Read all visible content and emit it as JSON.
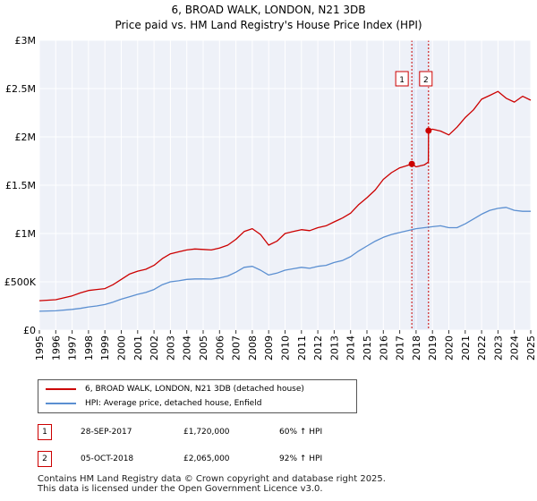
{
  "chart_data": {
    "type": "line",
    "title": "6, BROAD WALK, LONDON, N21 3DB",
    "subtitle": "Price paid vs. HM Land Registry's House Price Index (HPI)",
    "xlabel": "",
    "ylabel": "",
    "xlim": [
      1995,
      2025
    ],
    "ylim": [
      0,
      3000000
    ],
    "grid": true,
    "y_ticks": [
      {
        "value": 0,
        "label": "£0"
      },
      {
        "value": 500000,
        "label": "£500K"
      },
      {
        "value": 1000000,
        "label": "£1M"
      },
      {
        "value": 1500000,
        "label": "£1.5M"
      },
      {
        "value": 2000000,
        "label": "£2M"
      },
      {
        "value": 2500000,
        "label": "£2.5M"
      },
      {
        "value": 3000000,
        "label": "£3M"
      }
    ],
    "x_ticks": [
      "1995",
      "1996",
      "1997",
      "1998",
      "1999",
      "2000",
      "2001",
      "2002",
      "2003",
      "2004",
      "2005",
      "2006",
      "2007",
      "2008",
      "2009",
      "2010",
      "2011",
      "2012",
      "2013",
      "2014",
      "2015",
      "2016",
      "2017",
      "2018",
      "2019",
      "2020",
      "2021",
      "2022",
      "2023",
      "2024",
      "2025"
    ],
    "series": [
      {
        "name": "6, BROAD WALK, LONDON, N21 3DB (detached house)",
        "color": "#cc0000",
        "x": [
          1995.0,
          1996.0,
          1997.0,
          1997.5,
          1998.0,
          1998.5,
          1999.0,
          1999.5,
          2000.0,
          2000.5,
          2001.0,
          2001.5,
          2002.0,
          2002.5,
          2003.0,
          2003.5,
          2004.0,
          2004.5,
          2005.0,
          2005.5,
          2006.0,
          2006.5,
          2007.0,
          2007.5,
          2008.0,
          2008.5,
          2009.0,
          2009.5,
          2010.0,
          2010.5,
          2011.0,
          2011.5,
          2012.0,
          2012.5,
          2013.0,
          2013.5,
          2014.0,
          2014.5,
          2015.0,
          2015.5,
          2016.0,
          2016.5,
          2017.0,
          2017.4,
          2017.74,
          2018.0,
          2018.5,
          2018.75,
          2018.76,
          2019.0,
          2019.5,
          2020.0,
          2020.5,
          2021.0,
          2021.5,
          2022.0,
          2022.5,
          2023.0,
          2023.5,
          2024.0,
          2024.5,
          2025.0
        ],
        "values": [
          305000,
          315000,
          355000,
          385000,
          410000,
          420000,
          430000,
          470000,
          525000,
          580000,
          610000,
          630000,
          670000,
          740000,
          790000,
          810000,
          830000,
          840000,
          835000,
          830000,
          850000,
          880000,
          940000,
          1020000,
          1050000,
          990000,
          880000,
          920000,
          1000000,
          1020000,
          1040000,
          1030000,
          1060000,
          1080000,
          1120000,
          1160000,
          1210000,
          1300000,
          1370000,
          1450000,
          1560000,
          1630000,
          1680000,
          1700000,
          1720000,
          1690000,
          1710000,
          1740000,
          2065000,
          2080000,
          2060000,
          2020000,
          2100000,
          2200000,
          2280000,
          2390000,
          2430000,
          2470000,
          2400000,
          2360000,
          2420000,
          2380000
        ]
      },
      {
        "name": "HPI: Average price, detached house, Enfield",
        "color": "#5b8fd1",
        "x": [
          1995.0,
          1996.0,
          1997.0,
          1997.5,
          1998.0,
          1998.5,
          1999.0,
          1999.5,
          2000.0,
          2000.5,
          2001.0,
          2001.5,
          2002.0,
          2002.5,
          2003.0,
          2003.5,
          2004.0,
          2004.5,
          2005.0,
          2005.5,
          2006.0,
          2006.5,
          2007.0,
          2007.5,
          2008.0,
          2008.5,
          2009.0,
          2009.5,
          2010.0,
          2010.5,
          2011.0,
          2011.5,
          2012.0,
          2012.5,
          2013.0,
          2013.5,
          2014.0,
          2014.5,
          2015.0,
          2015.5,
          2016.0,
          2016.5,
          2017.0,
          2017.5,
          2018.0,
          2018.5,
          2019.0,
          2019.5,
          2020.0,
          2020.5,
          2021.0,
          2021.5,
          2022.0,
          2022.5,
          2023.0,
          2023.5,
          2024.0,
          2024.5,
          2025.0
        ],
        "values": [
          195000,
          200000,
          215000,
          225000,
          240000,
          250000,
          265000,
          290000,
          320000,
          345000,
          370000,
          390000,
          420000,
          470000,
          500000,
          510000,
          525000,
          530000,
          530000,
          528000,
          540000,
          560000,
          600000,
          650000,
          660000,
          620000,
          570000,
          590000,
          620000,
          635000,
          650000,
          640000,
          660000,
          670000,
          700000,
          720000,
          760000,
          820000,
          870000,
          920000,
          960000,
          990000,
          1010000,
          1030000,
          1050000,
          1060000,
          1070000,
          1080000,
          1060000,
          1060000,
          1100000,
          1150000,
          1200000,
          1240000,
          1260000,
          1270000,
          1240000,
          1230000,
          1230000
        ]
      }
    ],
    "sales": [
      {
        "marker": "1",
        "x": 2017.74,
        "value": 1720000
      },
      {
        "marker": "2",
        "x": 2018.76,
        "value": 2065000
      }
    ]
  },
  "legend": {
    "house_label": "6, BROAD WALK, LONDON, N21 3DB (detached house)",
    "hpi_label": "HPI: Average price, detached house, Enfield"
  },
  "transactions": [
    {
      "num": "1",
      "date": "28-SEP-2017",
      "price": "£1,720,000",
      "hpi": "60% ↑ HPI"
    },
    {
      "num": "2",
      "date": "05-OCT-2018",
      "price": "£2,065,000",
      "hpi": "92% ↑ HPI"
    }
  ],
  "footer": {
    "line1": "Contains HM Land Registry data © Crown copyright and database right 2025.",
    "line2": "This data is licensed under the Open Government Licence v3.0."
  },
  "colors": {
    "house": "#cc0000",
    "hpi": "#5b8fd1",
    "plot_bg": "#eef1f8",
    "sale_band": "#e4e9f6",
    "grid": "#ffffff"
  }
}
